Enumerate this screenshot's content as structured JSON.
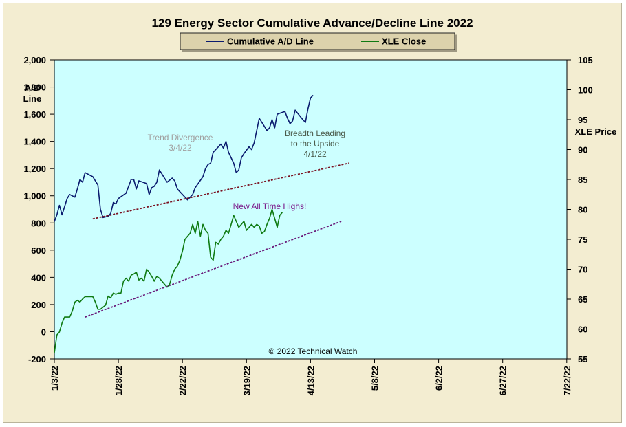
{
  "chart_data": {
    "type": "line",
    "title": "129 Energy Sector Cumulative Advance/Decline Line 2022",
    "legend": {
      "placement": "top",
      "entries": [
        "Cumulative A/D Line",
        "XLE Close"
      ]
    },
    "y_left": {
      "label": [
        "A/D",
        "Line"
      ],
      "min": -200,
      "max": 2000,
      "step": 200,
      "tick_labels": [
        "-200",
        "0",
        "200",
        "400",
        "600",
        "800",
        "1,000",
        "1,200",
        "1,400",
        "1,600",
        "1,800",
        "2,000"
      ]
    },
    "y_right": {
      "label": "XLE Price",
      "min": 55,
      "max": 105,
      "step": 5,
      "tick_labels": [
        "55",
        "60",
        "65",
        "70",
        "75",
        "80",
        "85",
        "90",
        "95",
        "100",
        "105"
      ]
    },
    "x": {
      "tick_labels": [
        "1/3/22",
        "1/28/22",
        "2/22/22",
        "3/19/22",
        "4/13/22",
        "5/8/22",
        "6/2/22",
        "6/27/22",
        "7/22/22"
      ]
    },
    "annotations": {
      "divergence": [
        "Trend Divergence",
        "3/4/22"
      ],
      "leading": [
        "Breadth Leading",
        "to the Upside",
        "4/1/22"
      ],
      "highs": "New All Time Highs!",
      "copyright": "© 2022 Technical Watch"
    },
    "colors": {
      "ad_line": "#0a1a6e",
      "xle": "#0f7a12",
      "trend_ad": "#7a1020",
      "trend_xle": "#6a1a7a",
      "plot_bg": "#ccffff",
      "frame_bg": "#f3edd1"
    },
    "series": [
      {
        "name": "Cumulative A/D Line",
        "axis": "left",
        "points": [
          [
            0,
            810
          ],
          [
            1,
            860
          ],
          [
            2,
            930
          ],
          [
            3,
            860
          ],
          [
            4,
            920
          ],
          [
            5,
            980
          ],
          [
            6,
            1010
          ],
          [
            8,
            990
          ],
          [
            9,
            1050
          ],
          [
            10,
            1120
          ],
          [
            11,
            1100
          ],
          [
            12,
            1170
          ],
          [
            15,
            1140
          ],
          [
            17,
            1080
          ],
          [
            18,
            900
          ],
          [
            19,
            840
          ],
          [
            21,
            850
          ],
          [
            22,
            870
          ],
          [
            23,
            950
          ],
          [
            24,
            940
          ],
          [
            25,
            980
          ],
          [
            28,
            1020
          ],
          [
            30,
            1120
          ],
          [
            31,
            1120
          ],
          [
            32,
            1050
          ],
          [
            33,
            1110
          ],
          [
            36,
            1090
          ],
          [
            37,
            1010
          ],
          [
            38,
            1060
          ],
          [
            39,
            1070
          ],
          [
            40,
            1100
          ],
          [
            41,
            1190
          ],
          [
            42,
            1160
          ],
          [
            43,
            1130
          ],
          [
            44,
            1100
          ],
          [
            46,
            1130
          ],
          [
            47,
            1110
          ],
          [
            48,
            1050
          ],
          [
            51,
            990
          ],
          [
            52,
            970
          ],
          [
            54,
            1010
          ],
          [
            55,
            1060
          ],
          [
            58,
            1140
          ],
          [
            59,
            1200
          ],
          [
            60,
            1230
          ],
          [
            61,
            1240
          ],
          [
            62,
            1320
          ],
          [
            65,
            1380
          ],
          [
            66,
            1350
          ],
          [
            67,
            1400
          ],
          [
            68,
            1320
          ],
          [
            70,
            1240
          ],
          [
            71,
            1170
          ],
          [
            72,
            1190
          ],
          [
            73,
            1280
          ],
          [
            74,
            1310
          ],
          [
            76,
            1360
          ],
          [
            77,
            1340
          ],
          [
            78,
            1390
          ],
          [
            80,
            1570
          ],
          [
            83,
            1480
          ],
          [
            84,
            1500
          ],
          [
            85,
            1560
          ],
          [
            86,
            1500
          ],
          [
            87,
            1600
          ],
          [
            90,
            1620
          ],
          [
            91,
            1570
          ],
          [
            92,
            1530
          ],
          [
            93,
            1550
          ],
          [
            94,
            1630
          ],
          [
            97,
            1560
          ],
          [
            98,
            1540
          ],
          [
            99,
            1640
          ],
          [
            100,
            1720
          ],
          [
            101,
            1740
          ]
        ]
      },
      {
        "name": "XLE Close",
        "axis": "right",
        "points": [
          [
            0,
            56
          ],
          [
            1,
            59
          ],
          [
            2,
            59.5
          ],
          [
            3,
            61
          ],
          [
            4,
            62
          ],
          [
            6,
            62
          ],
          [
            7,
            63
          ],
          [
            8,
            64.5
          ],
          [
            9,
            64.8
          ],
          [
            10,
            64.5
          ],
          [
            11,
            65
          ],
          [
            12,
            65.4
          ],
          [
            15,
            65.4
          ],
          [
            16,
            64.5
          ],
          [
            17,
            63.3
          ],
          [
            18,
            63.3
          ],
          [
            20,
            64
          ],
          [
            21,
            65.5
          ],
          [
            22,
            65.2
          ],
          [
            23,
            66
          ],
          [
            24,
            65.8
          ],
          [
            25,
            66
          ],
          [
            26,
            66
          ],
          [
            27,
            68
          ],
          [
            28,
            68.5
          ],
          [
            29,
            68
          ],
          [
            30,
            69
          ],
          [
            31,
            69.2
          ],
          [
            32,
            69.5
          ],
          [
            33,
            68.2
          ],
          [
            34,
            68.5
          ],
          [
            35,
            68
          ],
          [
            36,
            70
          ],
          [
            37,
            69.5
          ],
          [
            38,
            68.8
          ],
          [
            39,
            68
          ],
          [
            40,
            68.8
          ],
          [
            41,
            68.5
          ],
          [
            42,
            68
          ],
          [
            43,
            67.5
          ],
          [
            44,
            67
          ],
          [
            45,
            67.5
          ],
          [
            46,
            69
          ],
          [
            47,
            70
          ],
          [
            48,
            70.5
          ],
          [
            49,
            71.5
          ],
          [
            50,
            73
          ],
          [
            51,
            75
          ],
          [
            52,
            75.5
          ],
          [
            53,
            76
          ],
          [
            54,
            77.5
          ],
          [
            55,
            76
          ],
          [
            56,
            78
          ],
          [
            57,
            75.5
          ],
          [
            58,
            77.5
          ],
          [
            59,
            76.5
          ],
          [
            60,
            76
          ],
          [
            61,
            72
          ],
          [
            62,
            71.5
          ],
          [
            63,
            74.5
          ],
          [
            64,
            74.2
          ],
          [
            65,
            75
          ],
          [
            66,
            75.5
          ],
          [
            67,
            76.5
          ],
          [
            68,
            76
          ],
          [
            69,
            77.5
          ],
          [
            70,
            79
          ],
          [
            71,
            78
          ],
          [
            72,
            77
          ],
          [
            73,
            77.5
          ],
          [
            74,
            78
          ],
          [
            75,
            76.5
          ],
          [
            76,
            77
          ],
          [
            77,
            77.5
          ],
          [
            78,
            77
          ],
          [
            79,
            77.5
          ],
          [
            80,
            77.2
          ],
          [
            81,
            76
          ],
          [
            82,
            76.3
          ],
          [
            83,
            77.5
          ],
          [
            84,
            78.5
          ],
          [
            85,
            80
          ],
          [
            86,
            78.5
          ],
          [
            87,
            77
          ],
          [
            88,
            79
          ],
          [
            89,
            79.5
          ]
        ]
      },
      {
        "name": "A/D trendline",
        "axis": "left",
        "dashed": true,
        "points": [
          [
            15,
            830
          ],
          [
            115,
            1240
          ]
        ]
      },
      {
        "name": "XLE trendline",
        "axis": "right",
        "dashed": true,
        "points": [
          [
            12,
            62
          ],
          [
            112,
            78
          ]
        ]
      }
    ]
  }
}
